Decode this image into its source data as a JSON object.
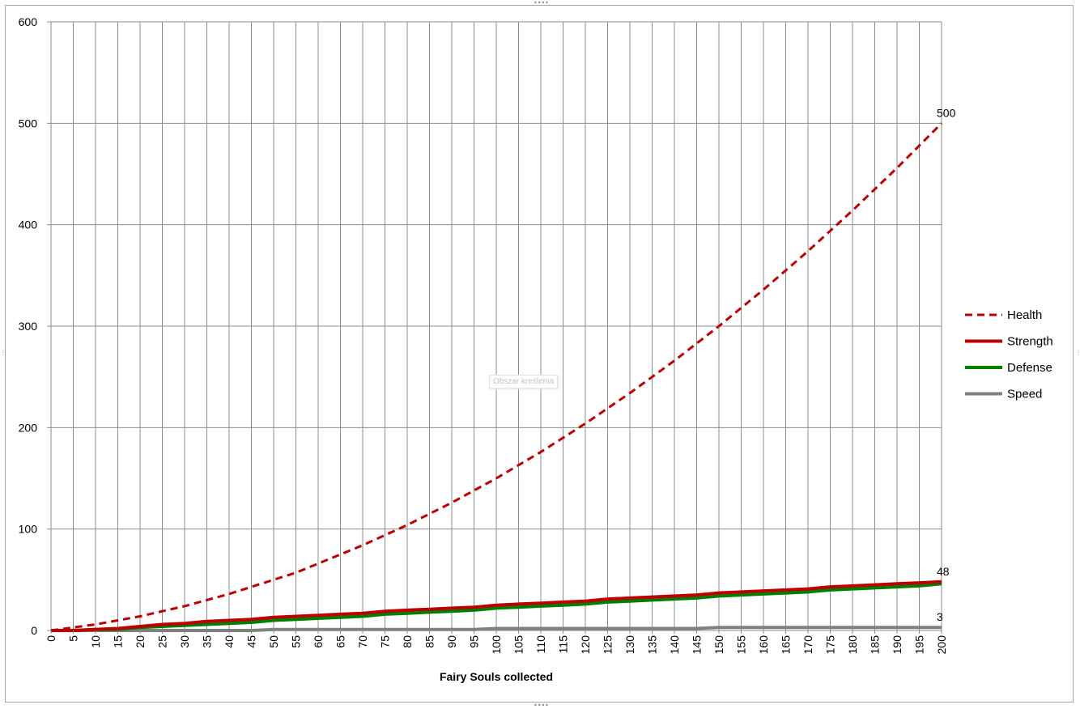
{
  "window": {
    "tooltip": "Obszar kreślenia"
  },
  "chart_data": {
    "type": "line",
    "title": "",
    "xlabel": "Fairy Souls collected",
    "ylabel": "",
    "xlim": [
      0,
      200
    ],
    "ylim": [
      0,
      600
    ],
    "x_ticks": [
      0,
      5,
      10,
      15,
      20,
      25,
      30,
      35,
      40,
      45,
      50,
      55,
      60,
      65,
      70,
      75,
      80,
      85,
      90,
      95,
      100,
      105,
      110,
      115,
      120,
      125,
      130,
      135,
      140,
      145,
      150,
      155,
      160,
      165,
      170,
      175,
      180,
      185,
      190,
      195,
      200
    ],
    "y_ticks": [
      0,
      100,
      200,
      300,
      400,
      500,
      600
    ],
    "grid": true,
    "legend_position": "right",
    "x": [
      0,
      5,
      10,
      15,
      20,
      25,
      30,
      35,
      40,
      45,
      50,
      55,
      60,
      65,
      70,
      75,
      80,
      85,
      90,
      95,
      100,
      105,
      110,
      115,
      120,
      125,
      130,
      135,
      140,
      145,
      150,
      155,
      160,
      165,
      170,
      175,
      180,
      185,
      190,
      195,
      200
    ],
    "series": [
      {
        "name": "Health",
        "color": "#c00000",
        "style": "dashed",
        "values": [
          0,
          3,
          6,
          10,
          14,
          19,
          24,
          30,
          36,
          43,
          50,
          57,
          66,
          75,
          84,
          94,
          104,
          115,
          126,
          138,
          150,
          163,
          176,
          190,
          204,
          219,
          234,
          250,
          266,
          283,
          300,
          318,
          336,
          355,
          374,
          394,
          414,
          435,
          456,
          478,
          500
        ]
      },
      {
        "name": "Strength",
        "color": "#c00000",
        "style": "solid",
        "values": [
          0,
          0,
          1,
          2,
          4,
          6,
          7,
          9,
          10,
          11,
          13,
          14,
          15,
          16,
          17,
          19,
          20,
          21,
          22,
          23,
          25,
          26,
          27,
          28,
          29,
          31,
          32,
          33,
          34,
          35,
          37,
          38,
          39,
          40,
          41,
          43,
          44,
          45,
          46,
          47,
          48
        ]
      },
      {
        "name": "Defense",
        "color": "#008000",
        "style": "solid",
        "values": [
          0,
          0,
          1,
          1,
          3,
          4,
          5,
          6,
          7,
          8,
          10,
          11,
          12,
          13,
          14,
          16,
          17,
          18,
          19,
          20,
          22,
          23,
          24,
          25,
          26,
          28,
          29,
          30,
          31,
          32,
          34,
          35,
          36,
          37,
          38,
          40,
          41,
          42,
          43,
          44,
          46
        ]
      },
      {
        "name": "Speed",
        "color": "#808080",
        "style": "solid",
        "values": [
          0,
          0,
          0,
          0,
          0,
          0,
          0,
          0,
          0,
          0,
          1,
          1,
          1,
          1,
          1,
          1,
          1,
          1,
          1,
          1,
          2,
          2,
          2,
          2,
          2,
          2,
          2,
          2,
          2,
          2,
          3,
          3,
          3,
          3,
          3,
          3,
          3,
          3,
          3,
          3,
          3
        ]
      }
    ],
    "annotations": [
      {
        "series": "Health",
        "x": 200,
        "text": "500"
      },
      {
        "series": "Strength",
        "x": 200,
        "text": "48"
      },
      {
        "series": "Speed",
        "x": 200,
        "text": "3"
      }
    ]
  }
}
